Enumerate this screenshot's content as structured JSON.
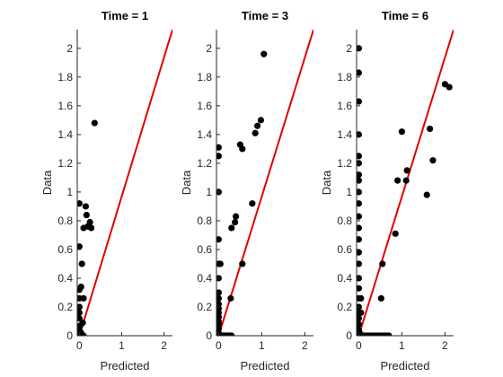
{
  "chart_data": [
    {
      "type": "scatter",
      "title": "Time = 1",
      "xlabel": "Predicted",
      "ylabel": "Data",
      "xlim": [
        -0.05,
        2.2
      ],
      "ylim": [
        0,
        2.13
      ],
      "xticks": [
        "0",
        "1",
        "2"
      ],
      "yticks": [
        "0",
        "0.2",
        "0.4",
        "0.6",
        "0.8",
        "1",
        "1.2",
        "1.4",
        "1.6",
        "1.8",
        "2"
      ],
      "grid": false,
      "reference_line": {
        "color": "#e00000",
        "x": [
          0,
          2.2
        ],
        "y": [
          0,
          2.13
        ]
      },
      "marker_color": "#000000",
      "points": [
        [
          0.0,
          0.0
        ],
        [
          0.02,
          0.0
        ],
        [
          0.04,
          0.0
        ],
        [
          0.06,
          0.0
        ],
        [
          0.08,
          0.0
        ],
        [
          0.1,
          0.0
        ],
        [
          0.0,
          0.04
        ],
        [
          0.02,
          0.07
        ],
        [
          0.0,
          0.12
        ],
        [
          0.0,
          0.16
        ],
        [
          0.0,
          0.2
        ],
        [
          0.0,
          0.26
        ],
        [
          0.0,
          0.32
        ],
        [
          0.0,
          0.62
        ],
        [
          0.0,
          0.92
        ],
        [
          0.04,
          0.34
        ],
        [
          0.06,
          0.5
        ],
        [
          0.08,
          0.09
        ],
        [
          0.1,
          0.26
        ],
        [
          0.1,
          0.75
        ],
        [
          0.15,
          0.9
        ],
        [
          0.17,
          0.84
        ],
        [
          0.2,
          0.76
        ],
        [
          0.25,
          0.79
        ],
        [
          0.28,
          0.75
        ],
        [
          0.36,
          1.48
        ],
        [
          0.02,
          0.02
        ],
        [
          0.04,
          0.02
        ]
      ]
    },
    {
      "type": "scatter",
      "title": "Time = 3",
      "xlabel": "Predicted",
      "ylabel": "Data",
      "xlim": [
        -0.05,
        2.2
      ],
      "ylim": [
        0,
        2.13
      ],
      "xticks": [
        "0",
        "1",
        "2"
      ],
      "yticks": [
        "0",
        "0.2",
        "0.4",
        "0.6",
        "0.8",
        "1",
        "1.2",
        "1.4",
        "1.6",
        "1.8",
        "2"
      ],
      "grid": false,
      "reference_line": {
        "color": "#e00000",
        "x": [
          0,
          2.2
        ],
        "y": [
          0,
          2.13
        ]
      },
      "marker_color": "#000000",
      "points": [
        [
          0.0,
          0.0
        ],
        [
          0.02,
          0.0
        ],
        [
          0.04,
          0.0
        ],
        [
          0.06,
          0.0
        ],
        [
          0.08,
          0.0
        ],
        [
          0.1,
          0.0
        ],
        [
          0.12,
          0.0
        ],
        [
          0.15,
          0.0
        ],
        [
          0.18,
          0.0
        ],
        [
          0.22,
          0.0
        ],
        [
          0.26,
          0.0
        ],
        [
          0.3,
          0.0
        ],
        [
          0.0,
          0.02
        ],
        [
          0.0,
          0.05
        ],
        [
          0.0,
          0.08
        ],
        [
          0.0,
          0.1
        ],
        [
          0.0,
          0.13
        ],
        [
          0.0,
          0.16
        ],
        [
          0.0,
          0.19
        ],
        [
          0.0,
          0.22
        ],
        [
          0.0,
          0.26
        ],
        [
          0.0,
          0.3
        ],
        [
          0.0,
          0.4
        ],
        [
          0.0,
          0.5
        ],
        [
          0.04,
          0.5
        ],
        [
          0.0,
          0.67
        ],
        [
          0.0,
          1.0
        ],
        [
          0.0,
          1.25
        ],
        [
          0.0,
          1.31
        ],
        [
          0.28,
          0.26
        ],
        [
          0.3,
          0.75
        ],
        [
          0.38,
          0.79
        ],
        [
          0.4,
          0.83
        ],
        [
          0.5,
          1.33
        ],
        [
          0.55,
          1.3
        ],
        [
          0.55,
          0.5
        ],
        [
          0.78,
          0.92
        ],
        [
          0.85,
          1.41
        ],
        [
          0.9,
          1.46
        ],
        [
          0.98,
          1.5
        ],
        [
          1.05,
          1.96
        ]
      ]
    },
    {
      "type": "scatter",
      "title": "Time = 6",
      "xlabel": "Predicted",
      "ylabel": "Data",
      "xlim": [
        -0.05,
        2.2
      ],
      "ylim": [
        0,
        2.13
      ],
      "xticks": [
        "0",
        "1",
        "2"
      ],
      "yticks": [
        "0",
        "0.2",
        "0.4",
        "0.6",
        "0.8",
        "1",
        "1.2",
        "1.4",
        "1.6",
        "1.8",
        "2"
      ],
      "grid": false,
      "reference_line": {
        "color": "#e00000",
        "x": [
          0,
          2.2
        ],
        "y": [
          0,
          2.13
        ]
      },
      "marker_color": "#000000",
      "points": [
        [
          0.0,
          0.0
        ],
        [
          0.02,
          0.0
        ],
        [
          0.05,
          0.0
        ],
        [
          0.1,
          0.0
        ],
        [
          0.15,
          0.0
        ],
        [
          0.2,
          0.0
        ],
        [
          0.25,
          0.0
        ],
        [
          0.3,
          0.0
        ],
        [
          0.35,
          0.0
        ],
        [
          0.4,
          0.0
        ],
        [
          0.45,
          0.0
        ],
        [
          0.5,
          0.0
        ],
        [
          0.55,
          0.0
        ],
        [
          0.6,
          0.0
        ],
        [
          0.65,
          0.0
        ],
        [
          0.7,
          0.0
        ],
        [
          0.0,
          0.04
        ],
        [
          0.0,
          0.08
        ],
        [
          0.0,
          0.12
        ],
        [
          0.0,
          0.16
        ],
        [
          0.0,
          0.2
        ],
        [
          0.0,
          0.26
        ],
        [
          0.05,
          0.26
        ],
        [
          0.0,
          0.33
        ],
        [
          0.0,
          0.4
        ],
        [
          0.0,
          0.5
        ],
        [
          0.0,
          0.58
        ],
        [
          0.0,
          0.67
        ],
        [
          0.0,
          0.75
        ],
        [
          0.0,
          0.83
        ],
        [
          0.0,
          0.92
        ],
        [
          0.0,
          1.0
        ],
        [
          0.0,
          1.08
        ],
        [
          0.0,
          1.12
        ],
        [
          0.0,
          1.2
        ],
        [
          0.0,
          1.25
        ],
        [
          0.0,
          1.4
        ],
        [
          0.0,
          1.63
        ],
        [
          0.0,
          1.83
        ],
        [
          0.0,
          2.0
        ],
        [
          0.02,
          0.02
        ],
        [
          0.05,
          0.16
        ],
        [
          0.52,
          0.26
        ],
        [
          0.55,
          0.5
        ],
        [
          0.85,
          0.71
        ],
        [
          0.9,
          1.08
        ],
        [
          1.0,
          1.42
        ],
        [
          1.1,
          1.08
        ],
        [
          1.12,
          1.15
        ],
        [
          1.58,
          0.98
        ],
        [
          1.65,
          1.44
        ],
        [
          1.72,
          1.22
        ],
        [
          2.0,
          1.75
        ],
        [
          2.1,
          1.73
        ]
      ]
    }
  ]
}
